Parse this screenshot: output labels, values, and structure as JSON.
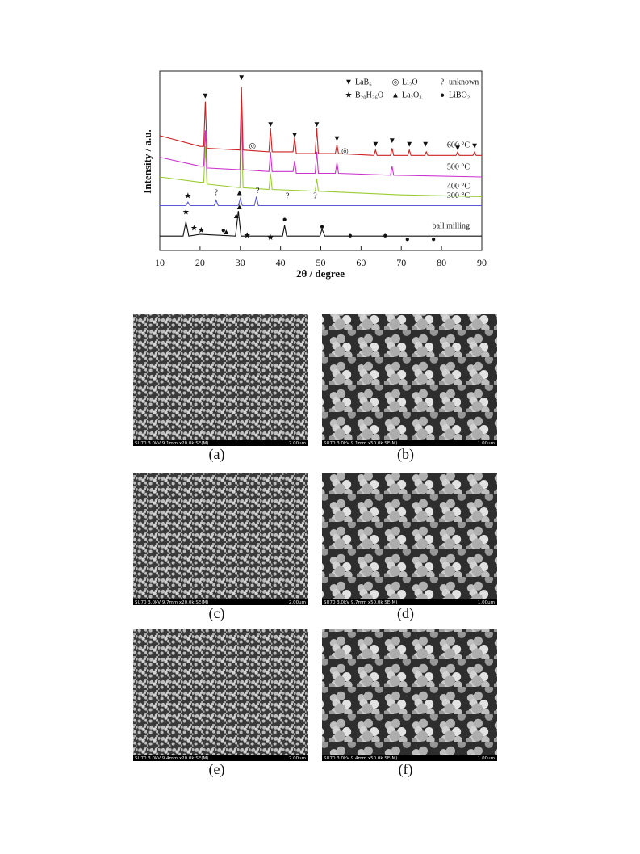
{
  "chart_data": {
    "type": "line",
    "xlabel": "2θ / degree",
    "ylabel": "Intensity / a.u.",
    "xlim": [
      10,
      90
    ],
    "xticks": [
      10,
      20,
      30,
      40,
      50,
      60,
      70,
      80,
      90
    ],
    "ylim": [
      0,
      100
    ],
    "series": [
      {
        "name": "ball milling",
        "color": "#111111",
        "x": [
          10,
          15.8,
          16.5,
          17.2,
          20,
          28.8,
          29.5,
          30.2,
          35,
          40.5,
          41,
          41.5,
          49.8,
          50.3,
          51,
          60,
          70,
          80,
          90
        ],
        "values": [
          8,
          8,
          16,
          8,
          9,
          8,
          22,
          8,
          8,
          8,
          14,
          8,
          8,
          12,
          8,
          8,
          8,
          8,
          8
        ]
      },
      {
        "name": "300 °C",
        "color": "#5a5ad8",
        "x": [
          10,
          16.5,
          17,
          17.5,
          23.5,
          24,
          24.5,
          29.5,
          30,
          30.5,
          33.5,
          34,
          34.5,
          50,
          70,
          90
        ],
        "values": [
          25,
          25,
          27,
          25,
          25,
          28,
          25,
          25,
          29,
          25,
          25,
          30,
          25,
          25,
          25,
          25
        ]
      },
      {
        "name": "400 °C",
        "color": "#9acd32",
        "x": [
          10,
          20,
          20.9,
          21.3,
          21.7,
          29.9,
          30.3,
          30.7,
          37.1,
          37.5,
          37.9,
          48.6,
          49,
          49.4,
          70,
          90
        ],
        "values": [
          41,
          38,
          38,
          58,
          37,
          35,
          72,
          35,
          34,
          43,
          34,
          33,
          40,
          33,
          31,
          30
        ]
      },
      {
        "name": "500 °C",
        "color": "#cc33cc",
        "x": [
          10,
          20,
          20.9,
          21.3,
          21.7,
          29.9,
          30.3,
          30.7,
          37.1,
          37.5,
          37.9,
          43.1,
          43.5,
          43.9,
          48.6,
          49,
          49.4,
          53.6,
          54,
          54.4,
          67.3,
          67.7,
          68.1,
          90
        ],
        "values": [
          52,
          47,
          47,
          67,
          46,
          45,
          86,
          45,
          44,
          55,
          44,
          44,
          50,
          43,
          43,
          55,
          43,
          43,
          49,
          43,
          42,
          47,
          42,
          41
        ]
      },
      {
        "name": "600 °C",
        "color": "#cc2222",
        "x": [
          10,
          20,
          20.9,
          21.3,
          21.7,
          29.9,
          30.3,
          30.7,
          37.1,
          37.5,
          37.9,
          43.1,
          43.5,
          43.9,
          48.6,
          49,
          49.4,
          53.6,
          54,
          54.4,
          63.2,
          63.6,
          64,
          67.3,
          67.7,
          68.1,
          71.6,
          72,
          72.4,
          75.8,
          76.2,
          76.6,
          83.6,
          84,
          84.4,
          87.8,
          88.2,
          88.6,
          90
        ],
        "values": [
          64,
          58,
          58,
          83,
          57,
          56,
          91,
          56,
          55,
          68,
          55,
          55,
          63,
          54,
          54,
          68,
          54,
          54,
          59,
          54,
          53,
          56,
          53,
          53,
          57,
          53,
          53,
          56,
          53,
          53,
          55,
          53,
          53,
          55,
          53,
          53,
          55,
          53,
          53
        ]
      }
    ],
    "legend": [
      {
        "symbol": "▼",
        "label": "LaB₆"
      },
      {
        "symbol": "◎",
        "label": "Li₂O"
      },
      {
        "symbol": "?",
        "label": "unknown"
      },
      {
        "symbol": "★",
        "label": "B₂₀H₂₆O"
      },
      {
        "symbol": "▲",
        "label": "La₂O₃"
      },
      {
        "symbol": "●",
        "label": "LiBO₂"
      }
    ],
    "markers": [
      {
        "symbol": "▼",
        "x": 21.3,
        "y": 86
      },
      {
        "symbol": "▼",
        "x": 30.3,
        "y": 96
      },
      {
        "symbol": "▼",
        "x": 37.5,
        "y": 70
      },
      {
        "symbol": "▼",
        "x": 43.5,
        "y": 64
      },
      {
        "symbol": "▼",
        "x": 49,
        "y": 70
      },
      {
        "symbol": "▼",
        "x": 54,
        "y": 62
      },
      {
        "symbol": "▼",
        "x": 63.6,
        "y": 59
      },
      {
        "symbol": "▼",
        "x": 67.7,
        "y": 61
      },
      {
        "symbol": "▼",
        "x": 72,
        "y": 59
      },
      {
        "symbol": "▼",
        "x": 76,
        "y": 59
      },
      {
        "symbol": "▼",
        "x": 84,
        "y": 57
      },
      {
        "symbol": "▼",
        "x": 88.2,
        "y": 58
      },
      {
        "symbol": "◎",
        "x": 33,
        "y": 58
      },
      {
        "symbol": "◎",
        "x": 56,
        "y": 55
      },
      {
        "symbol": "★",
        "x": 17,
        "y": 30
      },
      {
        "symbol": "?",
        "x": 24,
        "y": 32
      },
      {
        "symbol": "▲",
        "x": 29.8,
        "y": 32
      },
      {
        "symbol": "?",
        "x": 34.3,
        "y": 33
      },
      {
        "symbol": "?",
        "x": 41.7,
        "y": 30
      },
      {
        "symbol": "?",
        "x": 48.6,
        "y": 30
      },
      {
        "symbol": "★",
        "x": 16.5,
        "y": 21
      },
      {
        "symbol": "★",
        "x": 18.5,
        "y": 12
      },
      {
        "symbol": "★",
        "x": 20.3,
        "y": 11
      },
      {
        "symbol": "●",
        "x": 25.8,
        "y": 11
      },
      {
        "symbol": "▲",
        "x": 26.5,
        "y": 10
      },
      {
        "symbol": "▲",
        "x": 29,
        "y": 19
      },
      {
        "symbol": "▲",
        "x": 29.8,
        "y": 24
      },
      {
        "symbol": "★",
        "x": 31.7,
        "y": 8
      },
      {
        "symbol": "★",
        "x": 37.5,
        "y": 7
      },
      {
        "symbol": "●",
        "x": 41,
        "y": 17
      },
      {
        "symbol": "●",
        "x": 50.3,
        "y": 13
      },
      {
        "symbol": "●",
        "x": 57.3,
        "y": 8
      },
      {
        "symbol": "●",
        "x": 66,
        "y": 8
      },
      {
        "symbol": "●",
        "x": 71.5,
        "y": 6
      },
      {
        "symbol": "●",
        "x": 78,
        "y": 6
      }
    ]
  },
  "figures": [
    {
      "caption": "(a)",
      "info": "SU70 3.0kV 9.1mm x20.0k SE(M)",
      "scale": "2.00um"
    },
    {
      "caption": "(b)",
      "info": "SU70 3.0kV 9.1mm x50.0k SE(M)",
      "scale": "1.00um"
    },
    {
      "caption": "(c)",
      "info": "SU70 3.0kV 9.7mm x20.0k SE(M)",
      "scale": "2.00um"
    },
    {
      "caption": "(d)",
      "info": "SU70 3.0kV 9.7mm x50.0k SE(M)",
      "scale": "1.00um"
    },
    {
      "caption": "(e)",
      "info": "SU70 3.0kV 9.4mm x20.0k SE(M)",
      "scale": "2.00um"
    },
    {
      "caption": "(f)",
      "info": "SU70 3.0kV 9.4mm x50.0k SE(M)",
      "scale": "1.00um"
    }
  ]
}
